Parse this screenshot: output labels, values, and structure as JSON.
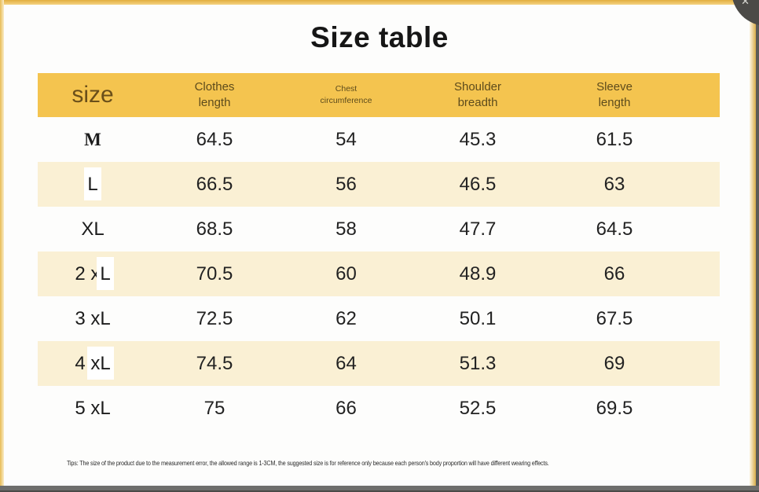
{
  "title": "Size table",
  "table": {
    "columns": [
      "size",
      "Clothes\nlength",
      "Chest\ncircumference",
      "Shoulder\nbreadth",
      "Sleeve\nlength"
    ],
    "rows": [
      {
        "size": "M",
        "serif": true,
        "patch": "",
        "values": [
          "64.5",
          "54",
          "45.3",
          "61.5"
        ]
      },
      {
        "size": "L",
        "serif": false,
        "patch": "L",
        "values": [
          "66.5",
          "56",
          "46.5",
          "63"
        ]
      },
      {
        "size": "XL",
        "serif": false,
        "patch": "",
        "values": [
          "68.5",
          "58",
          "47.7",
          "64.5"
        ]
      },
      {
        "size": "2 xL",
        "serif": false,
        "patch": "L",
        "values": [
          "70.5",
          "60",
          "48.9",
          "66"
        ]
      },
      {
        "size": "3 xL",
        "serif": false,
        "patch": "",
        "values": [
          "72.5",
          "62",
          "50.1",
          "67.5"
        ]
      },
      {
        "size": "4 xL",
        "serif": false,
        "patch": "xL",
        "values": [
          "74.5",
          "64",
          "51.3",
          "69"
        ]
      },
      {
        "size": "5 xL",
        "serif": false,
        "patch": "",
        "values": [
          "75",
          "66",
          "52.5",
          "69.5"
        ]
      }
    ]
  },
  "tips": "Tips: The size of the product due to the measurement error, the allowed range is 1-3CM, the suggested size is for reference only because each person's body proportion will have different wearing effects.",
  "corner_glyph": "✕",
  "colors": {
    "header_gold": "#f4c44f",
    "row_cream": "#faf0d4",
    "frame_gold": "#e8bc55",
    "edge_gray": "#6e6e6c",
    "corner_dark": "#4b4a47",
    "title_text": "#161616",
    "header_text": "#6a4f1a"
  },
  "chart_data": {
    "type": "table",
    "title": "Size table",
    "columns": [
      "size",
      "Clothes length",
      "Chest circumference",
      "Shoulder breadth",
      "Sleeve length"
    ],
    "rows": [
      [
        "M",
        64.5,
        54,
        45.3,
        61.5
      ],
      [
        "L",
        66.5,
        56,
        46.5,
        63
      ],
      [
        "XL",
        68.5,
        58,
        47.7,
        64.5
      ],
      [
        "2 xL",
        70.5,
        60,
        48.9,
        66
      ],
      [
        "3 xL",
        72.5,
        62,
        50.1,
        67.5
      ],
      [
        "4 xL",
        74.5,
        64,
        51.3,
        69
      ],
      [
        "5 xL",
        75,
        66,
        52.5,
        69.5
      ]
    ],
    "note": "Tips: The size of the product due to the measurement error, the allowed range is 1-3CM, the suggested size is for reference only because each person's body proportion will have different wearing effects."
  }
}
